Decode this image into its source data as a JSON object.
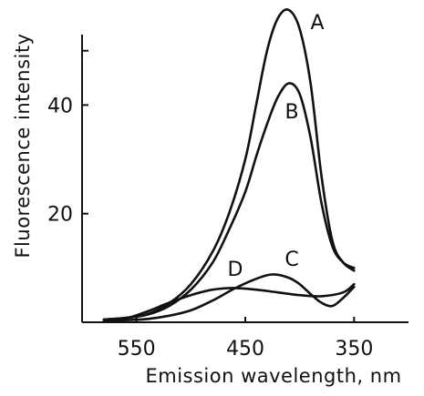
{
  "chart_data": {
    "type": "line",
    "title": "",
    "xlabel": "Emission wavelength, nm",
    "ylabel": "Fluorescence intensity",
    "x_reversed": true,
    "xlim": [
      600,
      300
    ],
    "ylim": [
      0,
      58
    ],
    "x_ticks": [
      550,
      450,
      350
    ],
    "x_tick_labels": [
      "550",
      "450",
      "350"
    ],
    "y_ticks": [
      20,
      40
    ],
    "y_tick_labels": [
      "20",
      "40"
    ],
    "grid": false,
    "series": [
      {
        "name": "A",
        "x": [
          580,
          560,
          540,
          520,
          500,
          480,
          465,
          450,
          440,
          430,
          420,
          410,
          400,
          390,
          380,
          370,
          360,
          350
        ],
        "y": [
          0.5,
          0.8,
          1.5,
          3.5,
          7.0,
          13.0,
          20.0,
          30.0,
          40.0,
          50.0,
          56.0,
          57.5,
          54.0,
          44.0,
          27.0,
          15.0,
          11.0,
          9.5
        ]
      },
      {
        "name": "B",
        "x": [
          580,
          560,
          540,
          520,
          500,
          480,
          465,
          450,
          440,
          430,
          420,
          410,
          400,
          390,
          380,
          370,
          360,
          350
        ],
        "y": [
          0.5,
          0.8,
          1.4,
          3.0,
          6.0,
          11.0,
          17.0,
          24.0,
          30.5,
          36.5,
          41.5,
          44.0,
          42.0,
          34.0,
          22.0,
          14.0,
          11.0,
          10.0
        ]
      },
      {
        "name": "C",
        "x": [
          580,
          560,
          540,
          520,
          500,
          480,
          460,
          440,
          425,
          410,
          400,
          390,
          380,
          370,
          360,
          350
        ],
        "y": [
          0.3,
          0.4,
          0.6,
          1.2,
          2.2,
          4.0,
          6.2,
          8.0,
          8.8,
          8.2,
          7.0,
          5.2,
          3.6,
          3.0,
          4.5,
          6.5
        ]
      },
      {
        "name": "D",
        "x": [
          580,
          560,
          540,
          520,
          500,
          480,
          460,
          440,
          420,
          400,
          380,
          360,
          350
        ],
        "y": [
          0.3,
          0.7,
          2.0,
          3.6,
          5.0,
          6.0,
          6.3,
          6.0,
          5.5,
          5.0,
          4.8,
          5.5,
          7.0
        ]
      }
    ],
    "series_label_text": [
      "A",
      "B",
      "C",
      "D"
    ]
  }
}
